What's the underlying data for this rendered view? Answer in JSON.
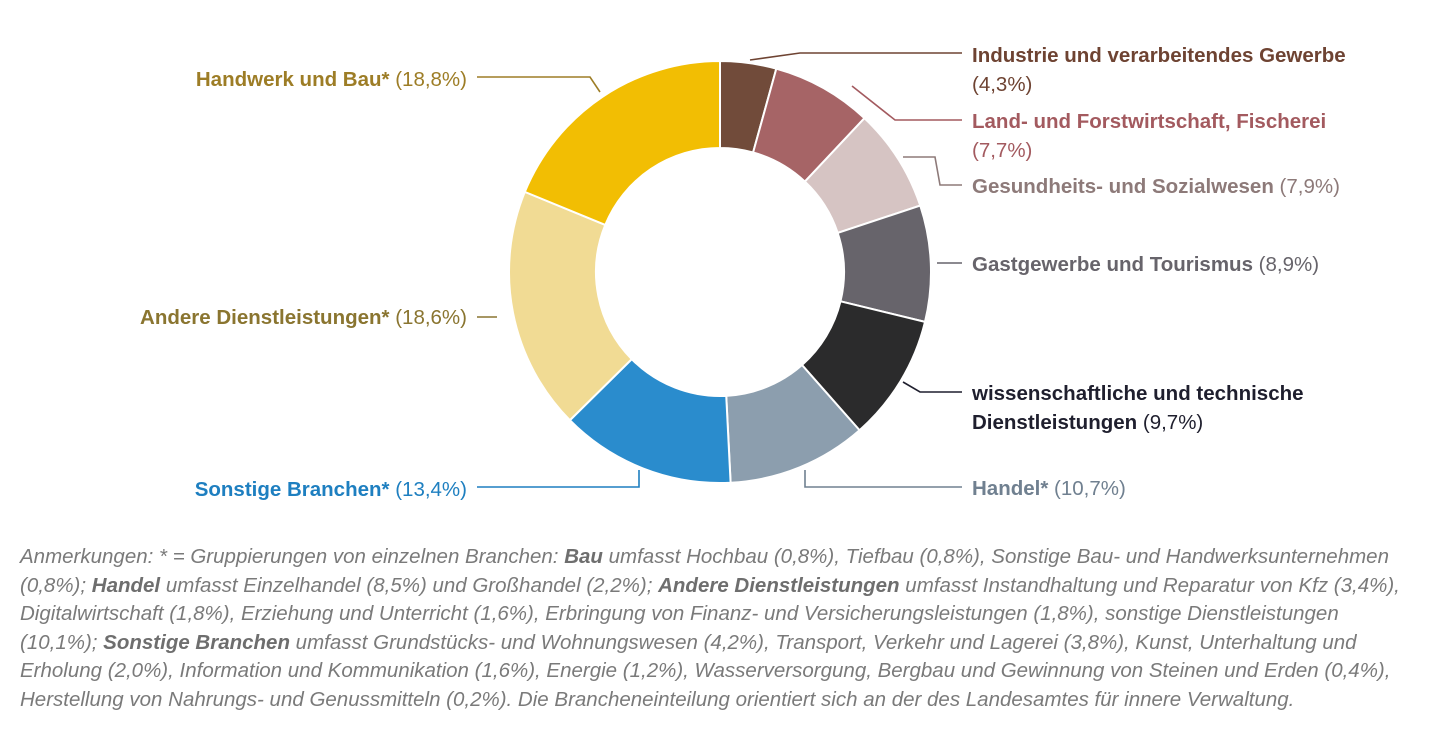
{
  "chart_data": {
    "type": "pie",
    "variant": "donut",
    "start": "top",
    "direction": "clockwise",
    "slices": [
      {
        "label": "Industrie und verarbeitendes Gewerbe",
        "pct": "(4,3%)",
        "value": 4.3,
        "color": "#714b3a",
        "label_color": "#6e4332",
        "side": "right"
      },
      {
        "label": "Land- und Forstwirtschaft, Fischerei",
        "pct": "(7,7%)",
        "value": 7.7,
        "color": "#a66466",
        "label_color": "#a35a5f",
        "side": "right"
      },
      {
        "label": "Gesundheits- und Sozialwesen",
        "pct": "(7,9%)",
        "value": 7.9,
        "color": "#d6c4c3",
        "label_color": "#8d7a79",
        "side": "right"
      },
      {
        "label": "Gastgewerbe und Tourismus",
        "pct": "(8,9%)",
        "value": 8.9,
        "color": "#67646b",
        "label_color": "#67646b",
        "side": "right"
      },
      {
        "label": "wissenschaftliche und technische Dienstleistungen",
        "label_line1": "wissenschaftliche und technische",
        "label_line2": "Dienstleistungen",
        "pct": "(9,7%)",
        "value": 9.7,
        "color": "#2b2b2c",
        "label_color": "#1f1f2e",
        "side": "right"
      },
      {
        "label": "Handel*",
        "pct": "(10,7%)",
        "value": 10.7,
        "color": "#8c9eae",
        "label_color": "#708090",
        "side": "right"
      },
      {
        "label": "Sonstige Branchen*",
        "pct": "(13,4%)",
        "value": 13.4,
        "color": "#2a8ccd",
        "label_color": "#1e7fc0",
        "side": "left"
      },
      {
        "label": "Andere Dienstleistungen*",
        "pct": "(18,6%)",
        "value": 18.6,
        "color": "#f1db94",
        "label_color": "#8a7530",
        "side": "left"
      },
      {
        "label": "Handwerk und Bau*",
        "pct": "(18,8%)",
        "value": 18.8,
        "color": "#f2be03",
        "label_color": "#9d7d26",
        "side": "left"
      }
    ]
  },
  "notes": {
    "t1": "Anmerkungen: * = Gruppierungen von einzelnen Branchen: ",
    "b1": "Bau",
    "t2": " umfasst Hochbau (0,8%), Tiefbau (0,8%), Sonstige Bau- und Handwerksunternehmen (0,8%); ",
    "b2": "Handel",
    "t3": " umfasst Einzelhandel (8,5%) und Großhandel (2,2%); ",
    "b3": "Andere Dienstleistungen",
    "t4": " umfasst Instandhaltung und Reparatur von Kfz (3,4%), Digitalwirtschaft (1,8%), Erziehung und Unterricht (1,6%), Erbringung von Finanz- und Versicherungsleistungen (1,8%), sonstige Dienstleistungen (10,1%); ",
    "b4": "Sonstige Branchen",
    "t5": " umfasst Grundstücks- und Wohnungswesen (4,2%), Transport, Verkehr und Lagerei (3,8%), Kunst, Unterhaltung und Erholung (2,0%), Information und Kommunikation (1,6%), Energie (1,2%), Wasserversorgung, Bergbau und Gewinnung von Steinen und Erden (0,4%), Herstellung von Nahrungs- und Genussmitteln (0,2%). Die Brancheneinteilung orientiert sich an der des Landesamtes für innere Verwaltung."
  }
}
